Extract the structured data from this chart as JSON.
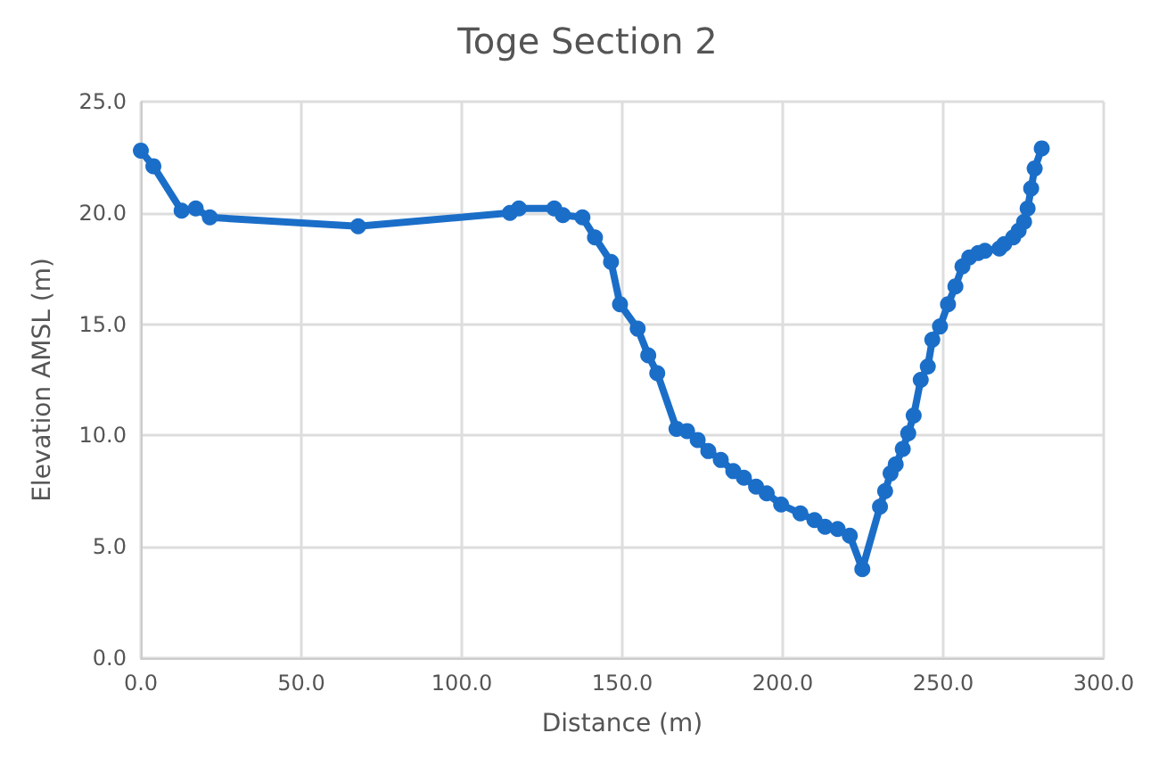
{
  "chart_data": {
    "type": "line",
    "title": "Toge Section 2",
    "xlabel": "Distance (m)",
    "ylabel": "Elevation AMSL (m)",
    "series": [
      {
        "color": "#1b6ec8",
        "x": [
          0,
          3.9,
          12.7,
          17.1,
          21.5,
          67.7,
          115,
          117.8,
          128.8,
          131.5,
          137.6,
          141.5,
          146.5,
          149.3,
          154.8,
          158.1,
          160.9,
          166.9,
          170.2,
          173.5,
          176.8,
          180.7,
          184.6,
          187.9,
          191.7,
          195,
          199.5,
          205.5,
          209.9,
          213.2,
          217.1,
          220.9,
          224.8,
          230.3,
          231.9,
          233.6,
          235.2,
          237.4,
          239.1,
          240.8,
          243,
          245.2,
          246.6,
          249,
          251.5,
          253.8,
          256,
          258.1,
          260.9,
          263,
          267.5,
          269,
          271.8,
          273.5,
          275.2,
          276.3,
          277.4,
          278.5,
          280.7
        ],
        "values": [
          22.8,
          22.1,
          20.1,
          20.2,
          19.8,
          19.4,
          20.0,
          20.2,
          20.2,
          19.9,
          19.8,
          18.9,
          17.8,
          15.9,
          14.8,
          13.6,
          12.8,
          10.3,
          10.2,
          9.8,
          9.3,
          8.9,
          8.4,
          8.1,
          7.7,
          7.4,
          6.9,
          6.5,
          6.2,
          5.9,
          5.8,
          5.5,
          4.0,
          6.8,
          7.5,
          8.3,
          8.7,
          9.4,
          10.1,
          10.9,
          12.5,
          13.1,
          14.3,
          14.9,
          15.9,
          16.7,
          17.6,
          18.0,
          18.2,
          18.3,
          18.4,
          18.6,
          18.9,
          19.2,
          19.6,
          20.2,
          21.1,
          22.0,
          22.9
        ]
      }
    ],
    "xlim": [
      0,
      300
    ],
    "xticks": [
      {
        "value": 0,
        "label": "0.0"
      },
      {
        "value": 50,
        "label": "50.0"
      },
      {
        "value": 100,
        "label": "100.0"
      },
      {
        "value": 150,
        "label": "150.0"
      },
      {
        "value": 200,
        "label": "200.0"
      },
      {
        "value": 250,
        "label": "250.0"
      },
      {
        "value": 300,
        "label": "300.0"
      }
    ],
    "ylim": [
      0,
      25
    ],
    "yticks": [
      {
        "value": 0,
        "label": "0.0"
      },
      {
        "value": 5,
        "label": "5.0"
      },
      {
        "value": 10,
        "label": "10.0"
      },
      {
        "value": 15,
        "label": "15.0"
      },
      {
        "value": 20,
        "label": "20.0"
      },
      {
        "value": 25,
        "label": "25.0"
      }
    ],
    "grid": true,
    "marker": "circle",
    "line_style": "solid"
  }
}
